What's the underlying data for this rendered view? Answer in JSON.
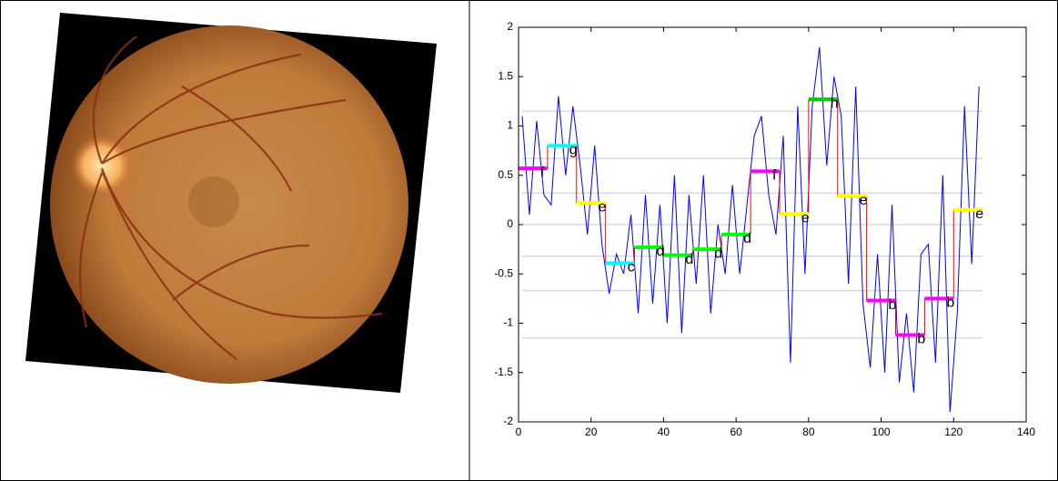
{
  "chart_data": {
    "type": "line",
    "xlim": [
      0,
      140
    ],
    "xticks": [
      0,
      20,
      40,
      60,
      80,
      100,
      120,
      140
    ],
    "ylim": [
      -2,
      2
    ],
    "yticks": [
      -2,
      -1.5,
      -1,
      -0.5,
      0,
      0.5,
      1,
      1.5,
      2
    ],
    "breakpoints": [
      -1.15,
      -0.67,
      -0.32,
      0,
      0.32,
      0.67,
      1.15
    ],
    "breakpoint_color": "#c8c8c8",
    "series": [
      {
        "color": "#0000ff",
        "x": [
          1,
          3,
          5,
          7,
          9,
          11,
          13,
          15,
          17,
          19,
          21,
          23,
          25,
          27,
          29,
          31,
          33,
          35,
          37,
          39,
          41,
          43,
          45,
          47,
          49,
          51,
          53,
          55,
          57,
          59,
          61,
          63,
          65,
          67,
          69,
          71,
          73,
          75,
          77,
          79,
          81,
          83,
          85,
          87,
          89,
          91,
          93,
          95,
          97,
          99,
          101,
          103,
          105,
          107,
          109,
          111,
          113,
          115,
          117,
          119,
          121,
          123,
          125,
          127
        ],
        "values": [
          1.1,
          0.1,
          1.05,
          0.3,
          0.2,
          1.3,
          0.5,
          1.2,
          0.6,
          -0.1,
          0.8,
          -0.2,
          -0.7,
          -0.3,
          -0.5,
          0.1,
          -0.9,
          0.3,
          -0.8,
          0.2,
          -1.0,
          0.5,
          -1.1,
          0.3,
          -0.6,
          0.5,
          -0.9,
          0.0,
          -0.5,
          0.4,
          -0.5,
          0.2,
          0.9,
          1.1,
          0.3,
          -0.1,
          0.9,
          -1.4,
          1.2,
          -0.5,
          1.2,
          1.8,
          0.6,
          1.5,
          1.1,
          -0.6,
          1.4,
          -0.8,
          -1.45,
          -0.3,
          -1.5,
          0.2,
          -1.6,
          -0.9,
          -1.7,
          -0.3,
          -0.2,
          -1.4,
          0.5,
          -1.9,
          -0.9,
          1.2,
          -0.4,
          1.4
        ]
      }
    ],
    "step_color": "#ff0000",
    "segments": [
      {
        "start": 0,
        "end": 8,
        "value": 0.57,
        "label": "f",
        "color": "#ff00ff"
      },
      {
        "start": 8,
        "end": 16,
        "value": 0.8,
        "label": "g",
        "color": "#00ffff"
      },
      {
        "start": 16,
        "end": 24,
        "value": 0.22,
        "label": "e",
        "color": "#ffff00"
      },
      {
        "start": 24,
        "end": 32,
        "value": -0.39,
        "label": "c",
        "color": "#00ffff"
      },
      {
        "start": 32,
        "end": 40,
        "value": -0.23,
        "label": "d",
        "color": "#00ff00"
      },
      {
        "start": 40,
        "end": 48,
        "value": -0.31,
        "label": "d",
        "color": "#00ff00"
      },
      {
        "start": 48,
        "end": 56,
        "value": -0.25,
        "label": "d",
        "color": "#00ff00"
      },
      {
        "start": 56,
        "end": 64,
        "value": -0.1,
        "label": "d",
        "color": "#00ff00"
      },
      {
        "start": 64,
        "end": 72,
        "value": 0.54,
        "label": "f",
        "color": "#ff00ff"
      },
      {
        "start": 72,
        "end": 80,
        "value": 0.11,
        "label": "e",
        "color": "#ffff00"
      },
      {
        "start": 80,
        "end": 88,
        "value": 1.27,
        "label": "h",
        "color": "#00cc00"
      },
      {
        "start": 88,
        "end": 96,
        "value": 0.29,
        "label": "e",
        "color": "#ffff00"
      },
      {
        "start": 96,
        "end": 104,
        "value": -0.77,
        "label": "b",
        "color": "#ff00ff"
      },
      {
        "start": 104,
        "end": 112,
        "value": -1.12,
        "label": "b",
        "color": "#ff00ff"
      },
      {
        "start": 112,
        "end": 120,
        "value": -0.75,
        "label": "b",
        "color": "#ff00ff"
      },
      {
        "start": 120,
        "end": 128,
        "value": 0.15,
        "label": "e",
        "color": "#ffff00"
      }
    ]
  }
}
